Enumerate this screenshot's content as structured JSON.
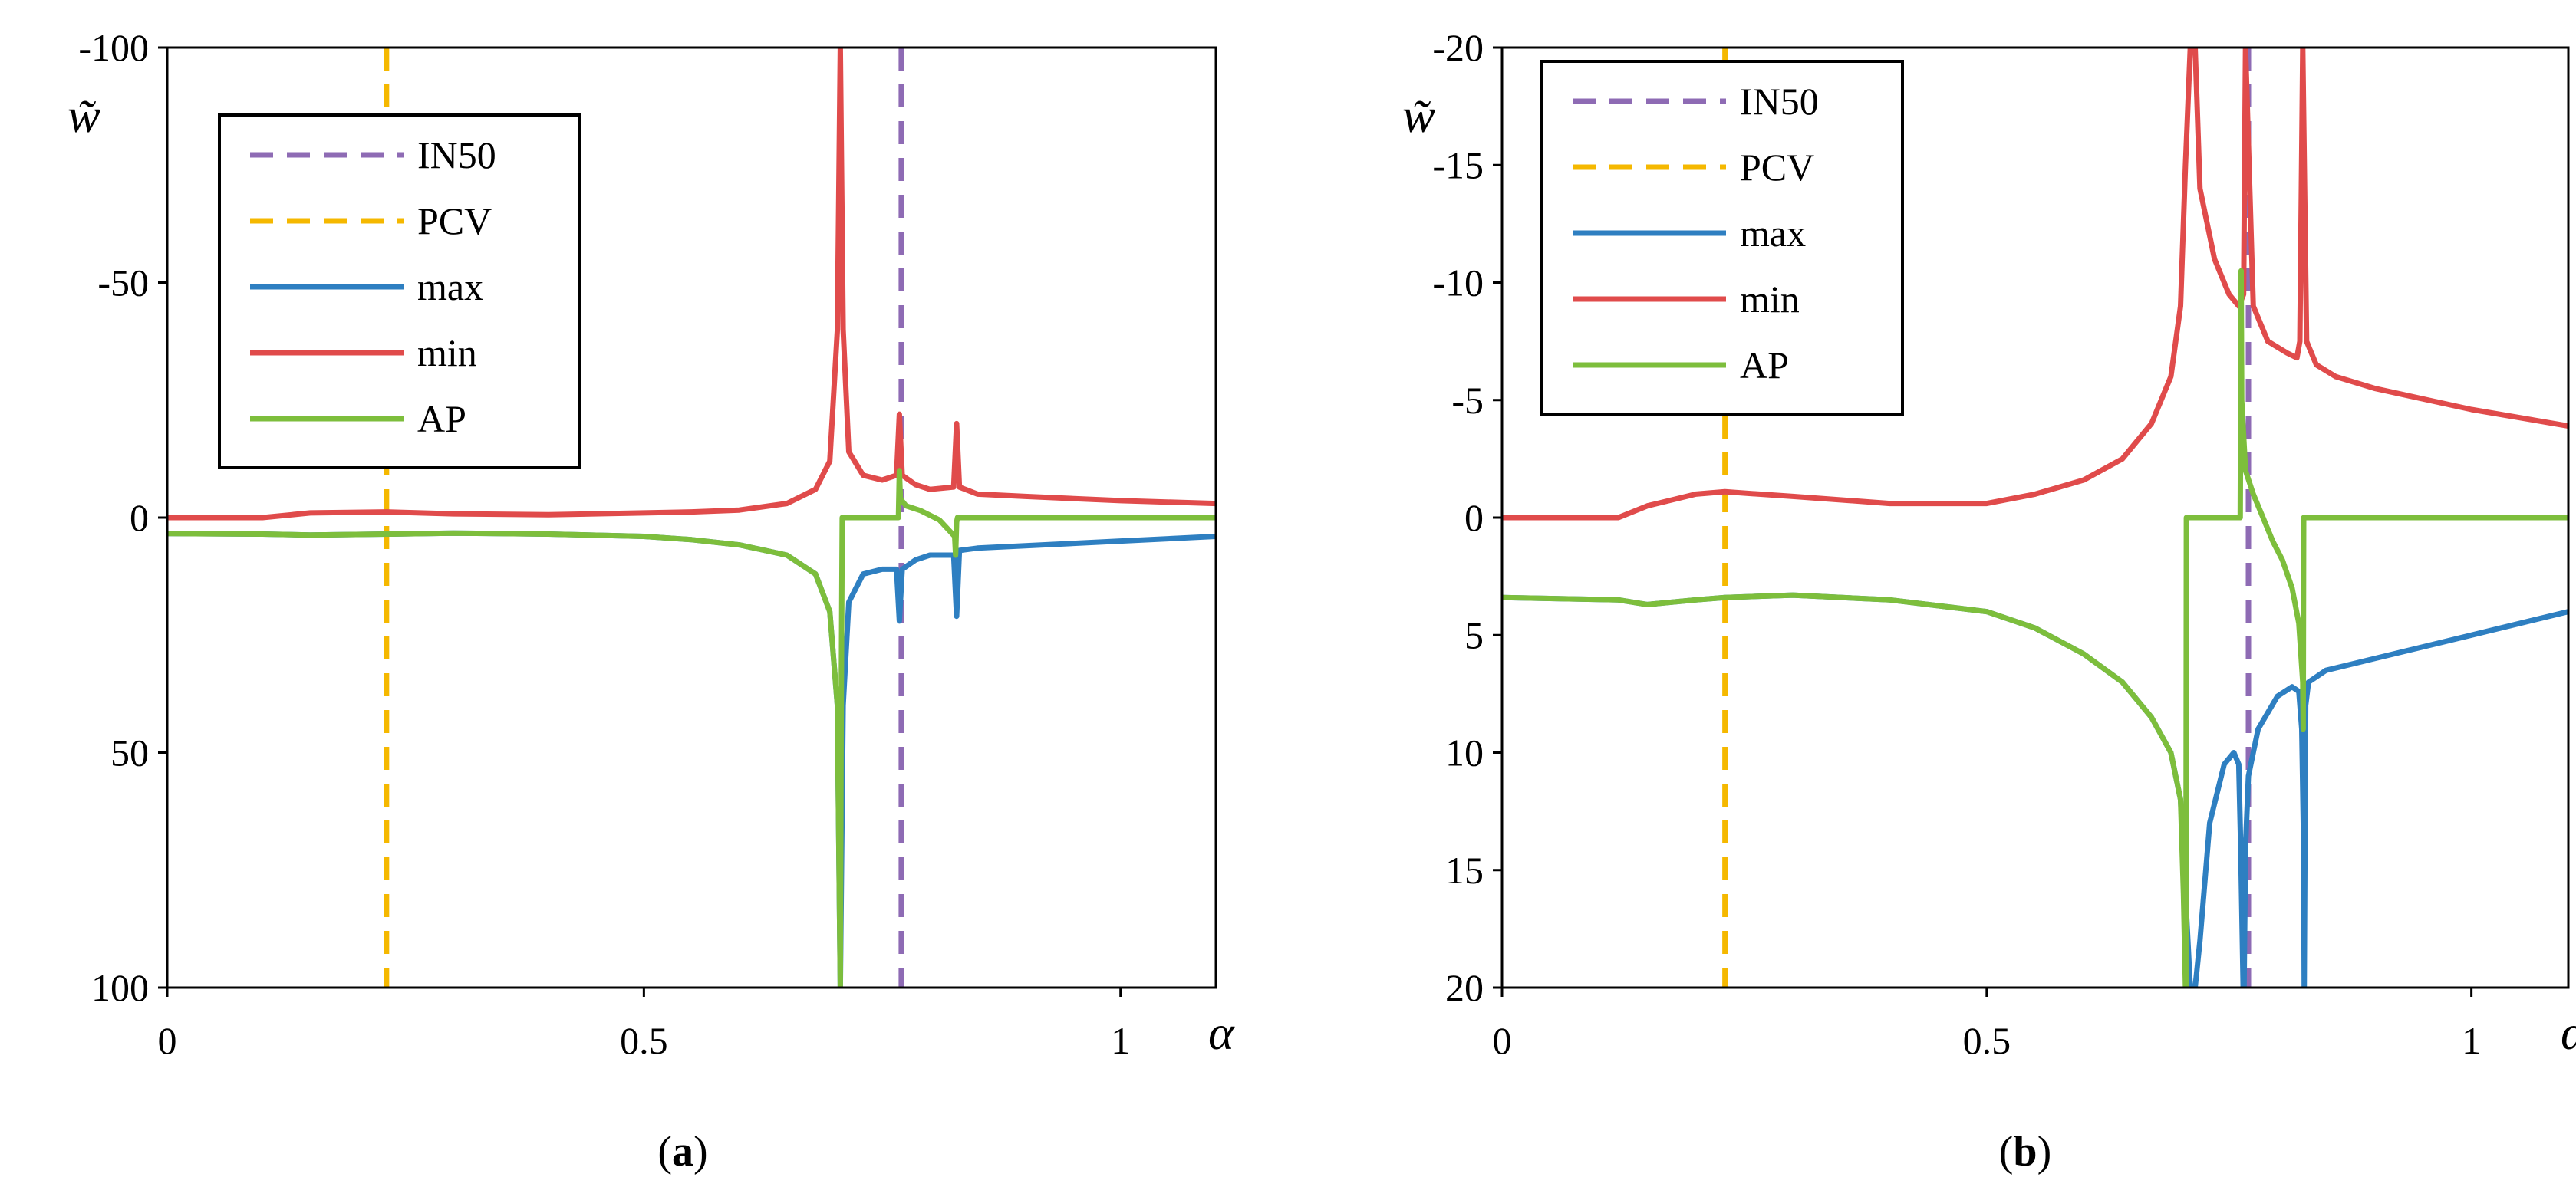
{
  "colors": {
    "IN50": "#8E6BB4",
    "PCV": "#F5B800",
    "max": "#2E7FC1",
    "min": "#E04B4B",
    "AP": "#7DBE3C"
  },
  "chart_data": [
    {
      "type": "line",
      "panel": "a",
      "caption": {
        "open": "(",
        "letter": "a",
        "close": ")"
      },
      "xlabel": "α",
      "ylabel": "w̃",
      "xlim": [
        0,
        1.1
      ],
      "ylim": [
        -100,
        100
      ],
      "y_inverted": true,
      "xticks": [
        0,
        0.5,
        1
      ],
      "xtick_labels": [
        "0",
        "0.5",
        "1"
      ],
      "yticks": [
        -100,
        -50,
        0,
        50,
        100
      ],
      "ytick_labels": [
        "-100",
        "-50",
        "0",
        "50",
        "100"
      ],
      "legend": {
        "position": "top-left",
        "entries": [
          "IN50",
          "PCV",
          "max",
          "min",
          "AP"
        ]
      },
      "vlines": [
        {
          "name": "IN50",
          "x": 0.77,
          "style": "dashed"
        },
        {
          "name": "PCV",
          "x": 0.23,
          "style": "dashed"
        }
      ],
      "series": [
        {
          "name": "min",
          "x": [
            0,
            0.1,
            0.15,
            0.23,
            0.3,
            0.4,
            0.5,
            0.55,
            0.6,
            0.65,
            0.68,
            0.695,
            0.703,
            0.706,
            0.709,
            0.715,
            0.73,
            0.75,
            0.765,
            0.768,
            0.771,
            0.785,
            0.8,
            0.825,
            0.828,
            0.831,
            0.85,
            0.9,
            1.0,
            1.1
          ],
          "values": [
            0,
            0,
            -1,
            -1.2,
            -0.8,
            -0.6,
            -1,
            -1.2,
            -1.6,
            -3,
            -6,
            -12,
            -40,
            -100,
            -40,
            -14,
            -9,
            -8,
            -9,
            -22,
            -9,
            -7,
            -6,
            -6.5,
            -20,
            -6.5,
            -5,
            -4.5,
            -3.6,
            -3
          ]
        },
        {
          "name": "max",
          "x": [
            0,
            0.1,
            0.15,
            0.23,
            0.3,
            0.4,
            0.5,
            0.55,
            0.6,
            0.65,
            0.68,
            0.695,
            0.703,
            0.706,
            0.709,
            0.715,
            0.73,
            0.75,
            0.765,
            0.768,
            0.771,
            0.785,
            0.8,
            0.825,
            0.828,
            0.831,
            0.85,
            0.9,
            1.0,
            1.1
          ],
          "values": [
            3.4,
            3.5,
            3.7,
            3.5,
            3.3,
            3.5,
            4,
            4.7,
            5.8,
            8,
            12,
            20,
            40,
            100,
            40,
            18,
            12,
            11,
            11,
            22,
            11,
            9,
            8,
            8,
            21,
            7,
            6.5,
            6,
            5,
            4
          ]
        },
        {
          "name": "AP",
          "x": [
            0,
            0.1,
            0.15,
            0.23,
            0.3,
            0.4,
            0.5,
            0.55,
            0.6,
            0.65,
            0.68,
            0.695,
            0.703,
            0.706,
            0.707,
            0.708,
            0.767,
            0.768,
            0.769,
            0.775,
            0.79,
            0.81,
            0.826,
            0.827,
            0.828,
            0.829,
            1.1
          ],
          "values": [
            3.4,
            3.5,
            3.7,
            3.5,
            3.3,
            3.5,
            4,
            4.7,
            5.8,
            8,
            12,
            20,
            40,
            100,
            40,
            0,
            0,
            -10,
            -4,
            -2.5,
            -1.5,
            0.5,
            4,
            8,
            1,
            0,
            0
          ]
        }
      ]
    },
    {
      "type": "line",
      "panel": "b",
      "caption": {
        "open": "(",
        "letter": "b",
        "close": ")"
      },
      "xlabel": "α",
      "ylabel": "w̃",
      "xlim": [
        0,
        1.1
      ],
      "ylim": [
        -20,
        20
      ],
      "y_inverted": true,
      "xticks": [
        0,
        0.5,
        1
      ],
      "xtick_labels": [
        "0",
        "0.5",
        "1"
      ],
      "yticks": [
        -20,
        -15,
        -10,
        -5,
        0,
        5,
        10,
        15,
        20
      ],
      "ytick_labels": [
        "-20",
        "-15",
        "-10",
        "-5",
        "0",
        "5",
        "10",
        "15",
        "20"
      ],
      "legend": {
        "position": "top-left",
        "entries": [
          "IN50",
          "PCV",
          "max",
          "min",
          "AP"
        ]
      },
      "vlines": [
        {
          "name": "IN50",
          "x": 0.77,
          "style": "dashed"
        },
        {
          "name": "PCV",
          "x": 0.23,
          "style": "dashed"
        }
      ],
      "series": [
        {
          "name": "min",
          "x": [
            0,
            0.12,
            0.15,
            0.2,
            0.23,
            0.3,
            0.4,
            0.5,
            0.55,
            0.6,
            0.64,
            0.67,
            0.69,
            0.7,
            0.705,
            0.71,
            0.715,
            0.72,
            0.735,
            0.75,
            0.76,
            0.765,
            0.767,
            0.775,
            0.79,
            0.81,
            0.82,
            0.823,
            0.826,
            0.83,
            0.84,
            0.86,
            0.9,
            1.0,
            1.1
          ],
          "values": [
            0,
            0,
            -0.5,
            -1,
            -1.1,
            -0.9,
            -0.6,
            -0.6,
            -1,
            -1.6,
            -2.5,
            -4,
            -6,
            -9,
            -15,
            -20,
            -20,
            -14,
            -11,
            -9.5,
            -9,
            -9.5,
            -20,
            -9,
            -7.5,
            -7,
            -6.8,
            -7.5,
            -20,
            -7.5,
            -6.5,
            -6,
            -5.5,
            -4.6,
            -3.9
          ]
        },
        {
          "name": "max",
          "x": [
            0,
            0.12,
            0.15,
            0.2,
            0.23,
            0.3,
            0.4,
            0.5,
            0.55,
            0.6,
            0.64,
            0.67,
            0.69,
            0.7,
            0.705,
            0.71,
            0.715,
            0.72,
            0.73,
            0.745,
            0.755,
            0.76,
            0.762,
            0.7645,
            0.7655,
            0.767,
            0.77,
            0.78,
            0.8,
            0.815,
            0.822,
            0.825,
            0.827,
            0.8275,
            0.829,
            0.832,
            0.85,
            0.9,
            1.0,
            1.1
          ],
          "values": [
            3.4,
            3.5,
            3.7,
            3.5,
            3.4,
            3.3,
            3.5,
            4,
            4.7,
            5.8,
            7,
            8.5,
            10,
            12,
            16,
            20,
            20,
            18,
            13,
            10.5,
            10,
            10.5,
            14,
            20,
            20,
            14,
            11,
            9,
            7.6,
            7.2,
            7.4,
            9,
            14,
            20,
            8,
            7,
            6.5,
            6,
            5,
            4
          ]
        },
        {
          "name": "AP",
          "x": [
            0,
            0.12,
            0.15,
            0.2,
            0.23,
            0.3,
            0.4,
            0.5,
            0.55,
            0.6,
            0.64,
            0.67,
            0.69,
            0.7,
            0.703,
            0.705,
            0.7055,
            0.706,
            0.7615,
            0.762,
            0.7625,
            0.763,
            0.767,
            0.775,
            0.785,
            0.795,
            0.805,
            0.815,
            0.822,
            0.826,
            0.8265,
            0.827,
            1.1
          ],
          "values": [
            3.4,
            3.5,
            3.7,
            3.5,
            3.4,
            3.3,
            3.5,
            4,
            4.7,
            5.8,
            7,
            8.5,
            10,
            12,
            16,
            20,
            20,
            0,
            0,
            -5,
            -10.5,
            -5,
            -2,
            -1,
            0,
            1,
            1.8,
            3,
            4.5,
            7,
            9,
            0,
            0
          ]
        }
      ]
    }
  ]
}
